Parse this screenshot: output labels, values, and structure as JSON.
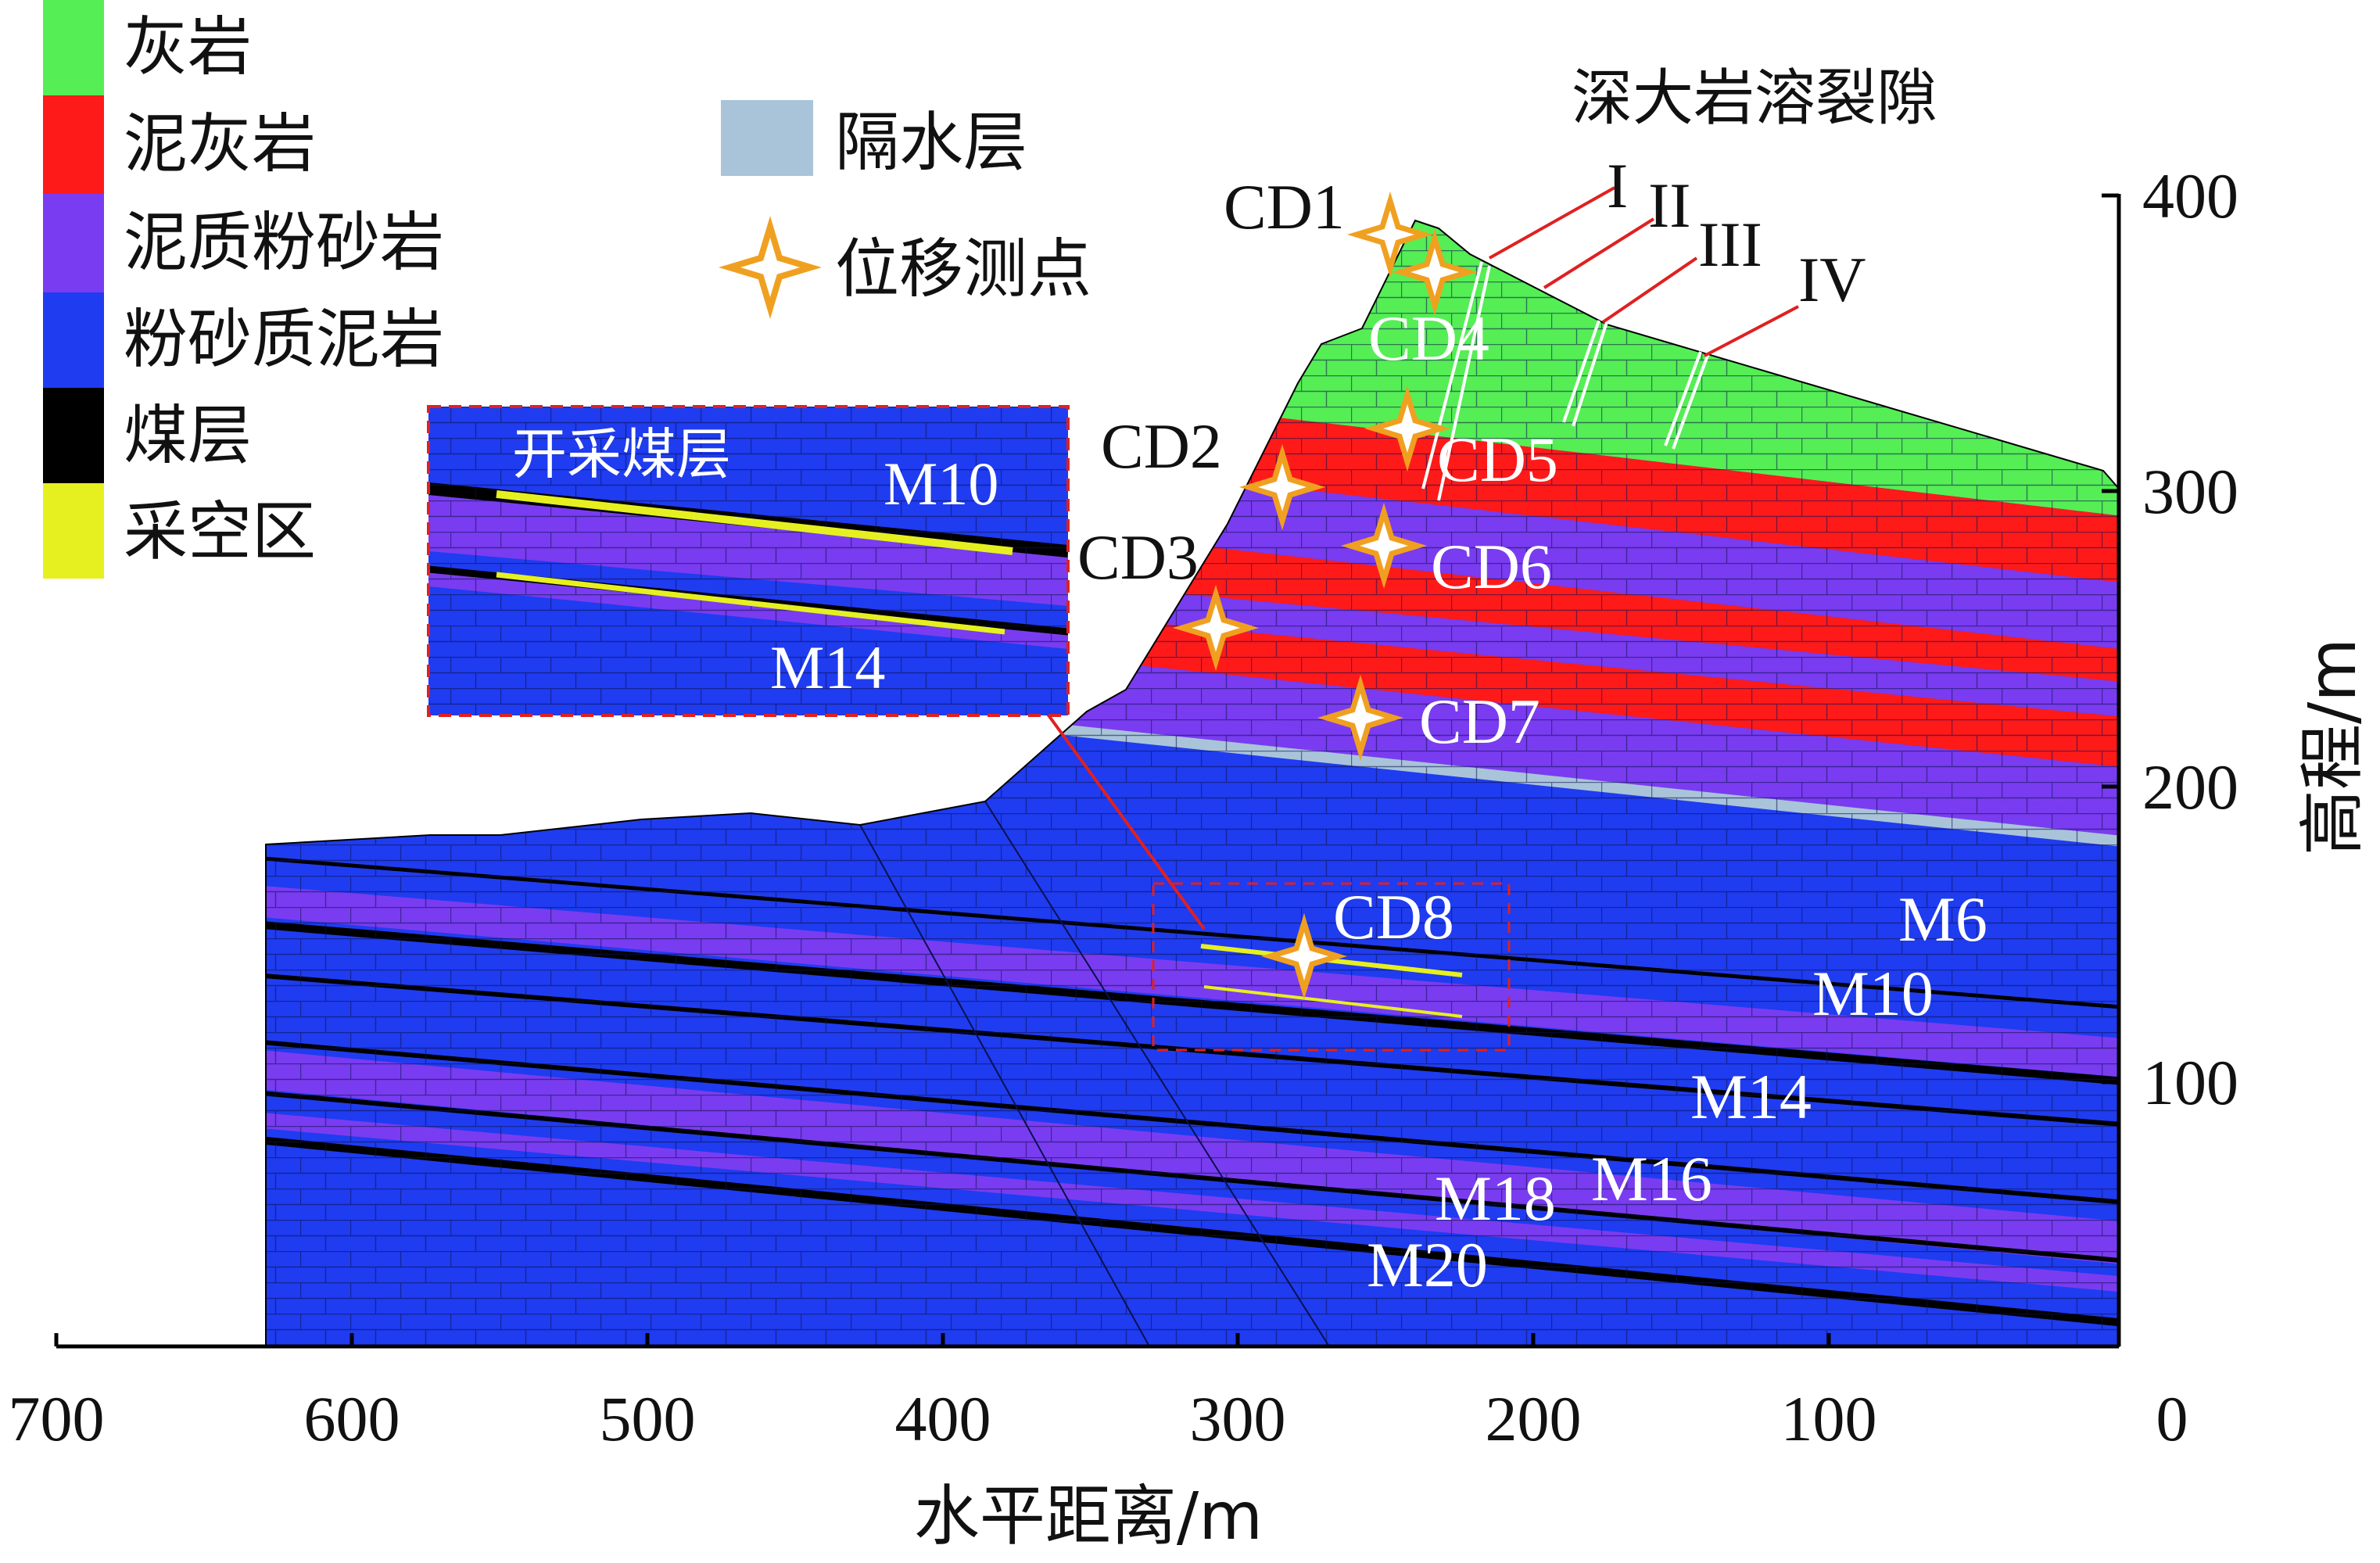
{
  "legend": {
    "items": [
      {
        "label": "灰岩",
        "color": "#55ee55"
      },
      {
        "label": "泥灰岩",
        "color": "#ff1a1a"
      },
      {
        "label": "泥质粉砂岩",
        "color": "#7a3cf0"
      },
      {
        "label": "粉砂质泥岩",
        "color": "#1f3cf0"
      },
      {
        "label": "煤层",
        "color": "#000000"
      },
      {
        "label": "采空区",
        "color": "#e6f020"
      }
    ],
    "aquiclude_label": "隔水层",
    "aquiclude_color": "#a9c4d9",
    "points_label": "位移测点",
    "points_color": "#f0a020"
  },
  "fissures": {
    "title": "深大岩溶裂隙",
    "labels": [
      "I",
      "II",
      "III",
      "IV"
    ]
  },
  "points": [
    "CD1",
    "CD2",
    "CD3",
    "CD4",
    "CD5",
    "CD6",
    "CD7",
    "CD8"
  ],
  "seams": [
    "M6",
    "M10",
    "M14",
    "M18",
    "M16",
    "M20"
  ],
  "inset": {
    "title": "开采煤层",
    "upper": "M10",
    "lower": "M14"
  },
  "axes": {
    "xlabel": "水平距离/m",
    "ylabel": "高程/m",
    "xticks": [
      "700",
      "600",
      "500",
      "400",
      "300",
      "200",
      "100",
      "0"
    ],
    "yticks": [
      "400",
      "300",
      "200",
      "100"
    ]
  }
}
